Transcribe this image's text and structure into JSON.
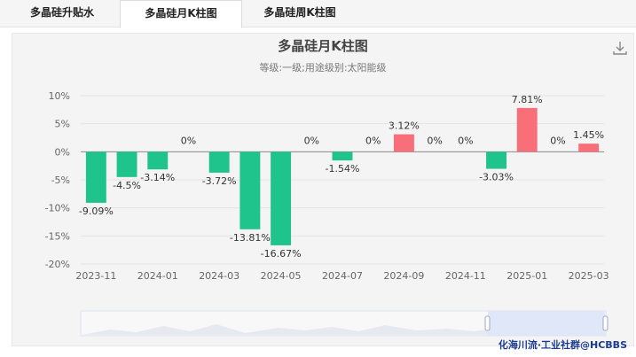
{
  "tabs": [
    {
      "label": "多晶硅升贴水",
      "active": false
    },
    {
      "label": "多晶硅月K柱图",
      "active": true
    },
    {
      "label": "多晶硅周K柱图",
      "active": false
    }
  ],
  "download_icon": "download-icon",
  "watermark": "化海川流·工业社群@HCBBS",
  "colors": {
    "positive": "#f86f7a",
    "negative": "#1ec48b"
  },
  "chart_data": {
    "type": "bar",
    "title": "多晶硅月K柱图",
    "subtitle": "等级:一级;用途级别:太阳能级",
    "categories": [
      "2023-11",
      "2023-12",
      "2024-01",
      "2024-02",
      "2024-03",
      "2024-04",
      "2024-05",
      "2024-06",
      "2024-07",
      "2024-08",
      "2024-09",
      "2024-10",
      "2024-11",
      "2024-12",
      "2025-01",
      "2025-02",
      "2025-03"
    ],
    "values": [
      -9.09,
      -4.5,
      -3.14,
      0,
      -3.72,
      -13.81,
      -16.67,
      0,
      -1.54,
      0,
      3.12,
      0,
      0,
      -3.03,
      7.81,
      0,
      1.45
    ],
    "value_labels": [
      "-9.09%",
      "-4.5%",
      "-3.14%",
      "0%",
      "-3.72%",
      "-13.81%",
      "-16.67%",
      "0%",
      "-1.54%",
      "0%",
      "3.12%",
      "0%",
      "0%",
      "-3.03%",
      "7.81%",
      "0%",
      "1.45%"
    ],
    "x_tick_labels": [
      "2023-11",
      "2024-01",
      "2024-03",
      "2024-05",
      "2024-07",
      "2024-09",
      "2024-11",
      "2025-01",
      "2025-03"
    ],
    "y_ticks": [
      10,
      5,
      0,
      -5,
      -10,
      -15,
      -20
    ],
    "y_tick_labels": [
      "10%",
      "5%",
      "0%",
      "-5%",
      "-10%",
      "-15%",
      "-20%"
    ],
    "ylim": [
      -20,
      10
    ],
    "grid": true,
    "legend": "none"
  }
}
